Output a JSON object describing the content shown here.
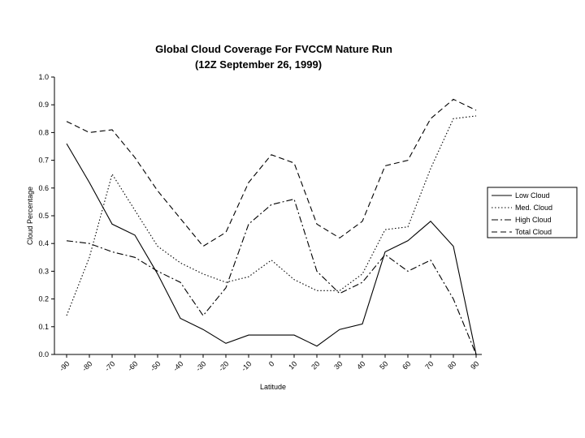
{
  "chart_data": {
    "type": "line",
    "title": "Global Cloud Coverage For FVCCM Nature Run",
    "subtitle": "(12Z September 26, 1999)",
    "xlabel": "Latitude",
    "ylabel": "Cloud Percentage",
    "x": [
      -90,
      -80,
      -70,
      -60,
      -50,
      -40,
      -30,
      -20,
      -10,
      0,
      10,
      20,
      30,
      40,
      50,
      60,
      70,
      80,
      90
    ],
    "x_tick_labels": [
      "-90",
      "-80",
      "-70",
      "-60",
      "-50",
      "-40",
      "-30",
      "-20",
      "-10",
      "0",
      "10",
      "20",
      "30",
      "40",
      "50",
      "60",
      "70",
      "80",
      "90"
    ],
    "ylim": [
      0,
      1.0
    ],
    "y_tick_labels": [
      "0.0",
      "0.1",
      "0.2",
      "0.3",
      "0.4",
      "0.5",
      "0.6",
      "0.7",
      "0.8",
      "0.9",
      "1.0"
    ],
    "grid": false,
    "legend_position": "right",
    "series": [
      {
        "name": "Low Cloud",
        "dash": "solid",
        "values": [
          0.76,
          0.62,
          0.47,
          0.43,
          0.29,
          0.13,
          0.09,
          0.04,
          0.07,
          0.07,
          0.07,
          0.03,
          0.09,
          0.11,
          0.37,
          0.41,
          0.48,
          0.39,
          0.0
        ]
      },
      {
        "name": "Med. Cloud",
        "dash": "dotted",
        "values": [
          0.14,
          0.35,
          0.65,
          0.52,
          0.39,
          0.33,
          0.29,
          0.26,
          0.28,
          0.34,
          0.27,
          0.23,
          0.23,
          0.29,
          0.45,
          0.46,
          0.67,
          0.85,
          0.86
        ]
      },
      {
        "name": "High Cloud",
        "dash": "dashdot",
        "values": [
          0.41,
          0.4,
          0.37,
          0.35,
          0.3,
          0.26,
          0.14,
          0.24,
          0.47,
          0.54,
          0.56,
          0.3,
          0.22,
          0.26,
          0.36,
          0.3,
          0.34,
          0.2,
          0.0
        ]
      },
      {
        "name": "Total Cloud",
        "dash": "dashed",
        "values": [
          0.84,
          0.8,
          0.81,
          0.71,
          0.59,
          0.49,
          0.39,
          0.44,
          0.62,
          0.72,
          0.69,
          0.47,
          0.42,
          0.48,
          0.68,
          0.7,
          0.85,
          0.92,
          0.88
        ]
      }
    ]
  }
}
